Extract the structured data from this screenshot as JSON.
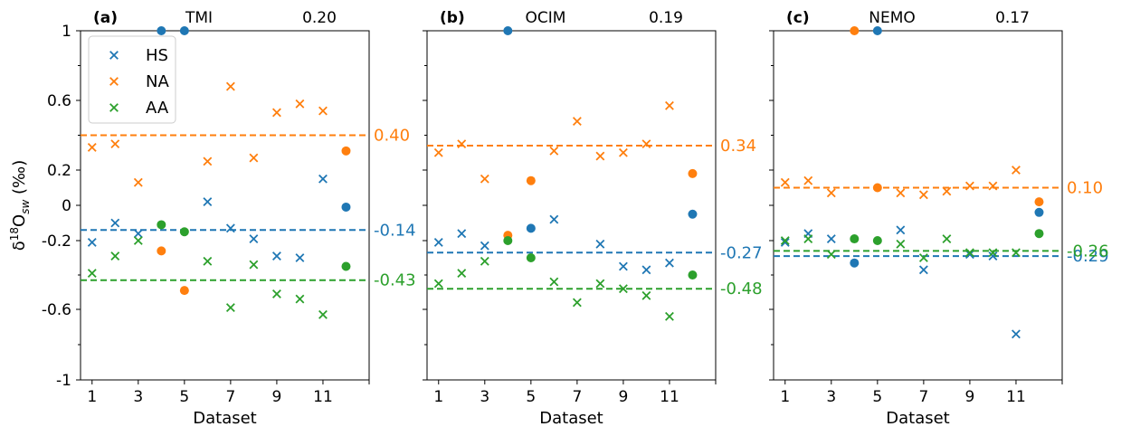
{
  "figure": {
    "ylabel": "δ18Osw (‰)",
    "ylabel_parts": {
      "delta": "δ",
      "sup": "18",
      "O": "O",
      "sub": "sw",
      "unit": " (‰)"
    },
    "xlabel": "Dataset",
    "ytick_labels": [
      "1",
      "0.6",
      "0.2",
      "0",
      "-0.2",
      "-0.6",
      "-1"
    ],
    "xtick_labels": [
      "1",
      "3",
      "5",
      "7",
      "9",
      "11"
    ],
    "legend": [
      {
        "label": "HS",
        "color": "#1f77b4"
      },
      {
        "label": "NA",
        "color": "#ff7f0e"
      },
      {
        "label": "AA",
        "color": "#2ca02c"
      }
    ]
  },
  "chart_data": [
    {
      "type": "scatter",
      "panel_label": "(a)",
      "model": "TMI",
      "value": "0.20",
      "ylim": [
        -1,
        1
      ],
      "xlim": [
        0.5,
        13
      ],
      "y_scale": "symlog-like (ticks 1, 0.6, 0.2, 0, -0.2, -0.6, -1)",
      "series": [
        {
          "name": "HS",
          "color": "#1f77b4",
          "crosses": [
            [
              1,
              -0.21
            ],
            [
              2,
              -0.1
            ],
            [
              3,
              -0.16
            ],
            [
              6,
              0.02
            ],
            [
              7,
              -0.13
            ],
            [
              8,
              -0.19
            ],
            [
              9,
              -0.29
            ],
            [
              10,
              -0.3
            ],
            [
              11,
              0.15
            ]
          ],
          "dots": [
            [
              4,
              1.0
            ],
            [
              5,
              1.0
            ],
            [
              12,
              -0.01
            ]
          ],
          "mean": -0.14,
          "mean_label": "-0.14"
        },
        {
          "name": "NA",
          "color": "#ff7f0e",
          "crosses": [
            [
              1,
              0.33
            ],
            [
              2,
              0.35
            ],
            [
              3,
              0.13
            ],
            [
              6,
              0.25
            ],
            [
              7,
              0.68
            ],
            [
              8,
              0.27
            ],
            [
              9,
              0.53
            ],
            [
              10,
              0.58
            ],
            [
              11,
              0.54
            ]
          ],
          "dots": [
            [
              4,
              -0.26
            ],
            [
              5,
              -0.49
            ],
            [
              12,
              0.31
            ]
          ],
          "mean": 0.4,
          "mean_label": "0.40"
        },
        {
          "name": "AA",
          "color": "#2ca02c",
          "crosses": [
            [
              1,
              -0.39
            ],
            [
              2,
              -0.29
            ],
            [
              3,
              -0.2
            ],
            [
              6,
              -0.32
            ],
            [
              7,
              -0.59
            ],
            [
              8,
              -0.34
            ],
            [
              9,
              -0.51
            ],
            [
              10,
              -0.54
            ],
            [
              11,
              -0.63
            ]
          ],
          "dots": [
            [
              4,
              -0.11
            ],
            [
              5,
              -0.15
            ],
            [
              12,
              -0.35
            ]
          ],
          "mean": -0.43,
          "mean_label": "-0.43"
        }
      ]
    },
    {
      "type": "scatter",
      "panel_label": "(b)",
      "model": "OCIM",
      "value": "0.19",
      "ylim": [
        -1,
        1
      ],
      "xlim": [
        0.5,
        13
      ],
      "series": [
        {
          "name": "HS",
          "color": "#1f77b4",
          "crosses": [
            [
              1,
              -0.21
            ],
            [
              2,
              -0.16
            ],
            [
              3,
              -0.23
            ],
            [
              6,
              -0.08
            ],
            [
              8,
              -0.22
            ],
            [
              9,
              -0.35
            ],
            [
              10,
              -0.37
            ],
            [
              11,
              -0.33
            ]
          ],
          "dots": [
            [
              4,
              1.0
            ],
            [
              5,
              -0.13
            ],
            [
              12,
              -0.05
            ]
          ],
          "mean": -0.27,
          "mean_label": "-0.27"
        },
        {
          "name": "NA",
          "color": "#ff7f0e",
          "crosses": [
            [
              1,
              0.3
            ],
            [
              2,
              0.35
            ],
            [
              3,
              0.15
            ],
            [
              6,
              0.31
            ],
            [
              7,
              0.48
            ],
            [
              8,
              0.28
            ],
            [
              9,
              0.3
            ],
            [
              10,
              0.35
            ],
            [
              11,
              0.57
            ]
          ],
          "dots": [
            [
              4,
              -0.17
            ],
            [
              5,
              0.14
            ],
            [
              12,
              0.18
            ]
          ],
          "mean": 0.34,
          "mean_label": "0.34"
        },
        {
          "name": "AA",
          "color": "#2ca02c",
          "crosses": [
            [
              1,
              -0.45
            ],
            [
              2,
              -0.39
            ],
            [
              3,
              -0.32
            ],
            [
              6,
              -0.44
            ],
            [
              7,
              -0.56
            ],
            [
              8,
              -0.45
            ],
            [
              9,
              -0.48
            ],
            [
              10,
              -0.52
            ],
            [
              11,
              -0.64
            ]
          ],
          "dots": [
            [
              4,
              -0.2
            ],
            [
              5,
              -0.3
            ],
            [
              12,
              -0.4
            ]
          ],
          "mean": -0.48,
          "mean_label": "-0.48"
        }
      ]
    },
    {
      "type": "scatter",
      "panel_label": "(c)",
      "model": "NEMO",
      "value": "0.17",
      "ylim": [
        -1,
        1
      ],
      "xlim": [
        0.5,
        13
      ],
      "series": [
        {
          "name": "HS",
          "color": "#1f77b4",
          "crosses": [
            [
              1,
              -0.21
            ],
            [
              2,
              -0.16
            ],
            [
              3,
              -0.19
            ],
            [
              6,
              -0.14
            ],
            [
              7,
              -0.37
            ],
            [
              9,
              -0.28
            ],
            [
              10,
              -0.29
            ],
            [
              11,
              -0.74
            ]
          ],
          "dots": [
            [
              4,
              -0.33
            ],
            [
              5,
              1.0
            ],
            [
              12,
              -0.04
            ]
          ],
          "mean": -0.29,
          "mean_label": "-0.29"
        },
        {
          "name": "NA",
          "color": "#ff7f0e",
          "crosses": [
            [
              1,
              0.13
            ],
            [
              2,
              0.14
            ],
            [
              3,
              0.07
            ],
            [
              6,
              0.07
            ],
            [
              7,
              0.06
            ],
            [
              8,
              0.08
            ],
            [
              9,
              0.11
            ],
            [
              10,
              0.11
            ],
            [
              11,
              0.2
            ]
          ],
          "dots": [
            [
              4,
              1.0
            ],
            [
              5,
              0.1
            ],
            [
              12,
              0.02
            ]
          ],
          "mean": 0.1,
          "mean_label": "0.10"
        },
        {
          "name": "AA",
          "color": "#2ca02c",
          "crosses": [
            [
              1,
              -0.2
            ],
            [
              2,
              -0.19
            ],
            [
              3,
              -0.28
            ],
            [
              6,
              -0.22
            ],
            [
              7,
              -0.3
            ],
            [
              8,
              -0.19
            ],
            [
              9,
              -0.27
            ],
            [
              10,
              -0.27
            ],
            [
              11,
              -0.27
            ]
          ],
          "dots": [
            [
              4,
              -0.19
            ],
            [
              5,
              -0.2
            ],
            [
              12,
              -0.16
            ]
          ],
          "mean": -0.26,
          "mean_label": "-0.26"
        }
      ]
    }
  ]
}
